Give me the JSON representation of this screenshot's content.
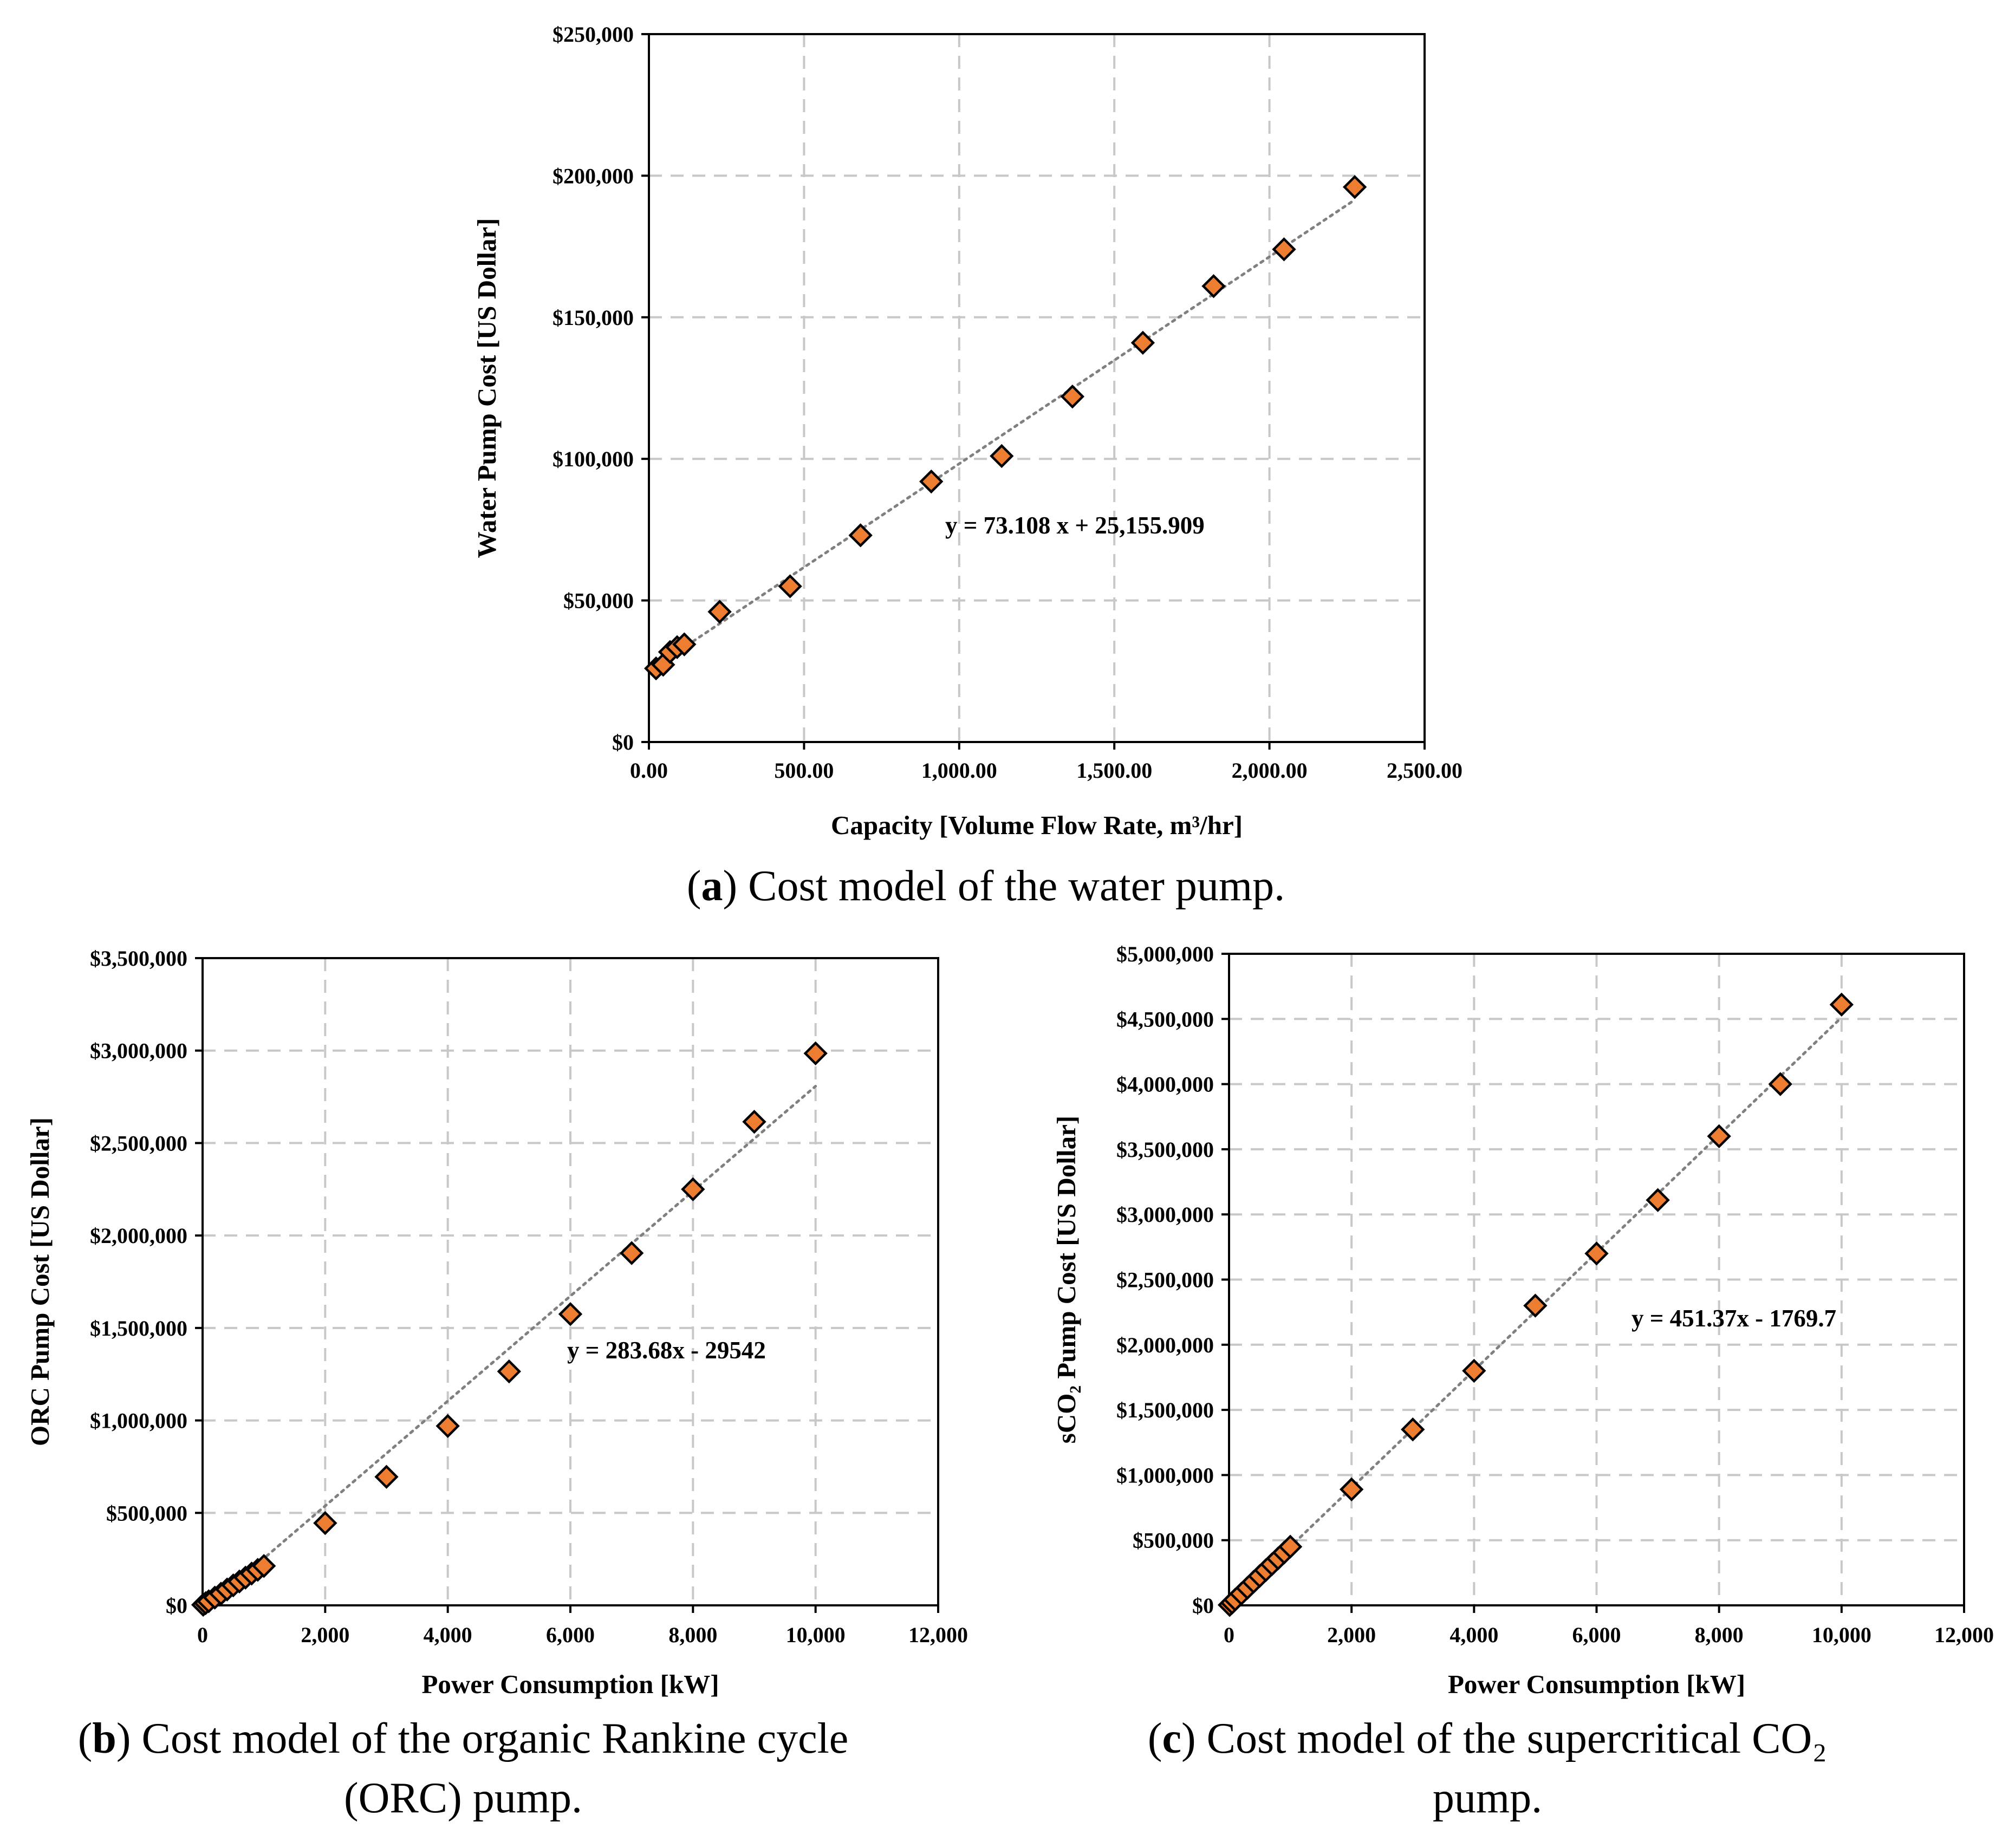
{
  "colors": {
    "marker_fill": "#ED7D31",
    "marker_edge": "#000000",
    "trend": "#808080",
    "grid": "#C8C8C8"
  },
  "chart_data": [
    {
      "id": "a",
      "type": "scatter",
      "marker": "diamond",
      "ylabel": "Water Pump Cost [US Dollar]",
      "xlabel": "Capacity [Volume Flow Rate, m³/hr]",
      "xlim": [
        0,
        2500
      ],
      "ylim": [
        0,
        250000
      ],
      "xticks": [
        0,
        500,
        1000,
        1500,
        2000,
        2500
      ],
      "xtick_labels": [
        "0.00",
        "500.00",
        "1,000.00",
        "1,500.00",
        "2,000.00",
        "2,500.00"
      ],
      "yticks": [
        0,
        50000,
        100000,
        150000,
        200000,
        250000
      ],
      "ytick_labels": [
        "$0",
        "$50,000",
        "$100,000",
        "$150,000",
        "$200,000",
        "$250,000"
      ],
      "grid": true,
      "equation": "y = 73.108 x + 25,155.909",
      "trendline": {
        "slope": 73.108,
        "intercept": 25155.909,
        "x_range": [
          0,
          2275
        ]
      },
      "x": [
        23,
        46,
        68,
        91,
        114,
        228,
        455,
        682,
        910,
        1137,
        1365,
        1592,
        1820,
        2047,
        2275
      ],
      "y": [
        26000,
        27300,
        31800,
        33500,
        34500,
        46000,
        55000,
        73000,
        92000,
        101000,
        122000,
        141000,
        161000,
        174000,
        196000
      ],
      "caption": {
        "tag": "a",
        "text": " Cost model of the water pump."
      }
    },
    {
      "id": "b",
      "type": "scatter",
      "marker": "diamond",
      "ylabel": "ORC Pump Cost [US Dollar]",
      "xlabel": "Power Consumption [kW]",
      "xlim": [
        0,
        12000
      ],
      "ylim": [
        0,
        3500000
      ],
      "xticks": [
        0,
        2000,
        4000,
        6000,
        8000,
        10000,
        12000
      ],
      "xtick_labels": [
        "0",
        "2,000",
        "4,000",
        "6,000",
        "8,000",
        "10,000",
        "12,000"
      ],
      "yticks": [
        0,
        500000,
        1000000,
        1500000,
        2000000,
        2500000,
        3000000,
        3500000
      ],
      "ytick_labels": [
        "$0",
        "$500,000",
        "$1,000,000",
        "$1,500,000",
        "$2,000,000",
        "$2,500,000",
        "$3,000,000",
        "$3,500,000"
      ],
      "grid": true,
      "equation": "y = 283.68x - 29542",
      "trendline": {
        "slope": 283.68,
        "intercept": -29542,
        "x_range": [
          104,
          10000
        ]
      },
      "x": [
        10,
        50,
        100,
        200,
        300,
        400,
        500,
        600,
        700,
        800,
        900,
        1000,
        2000,
        3000,
        4000,
        5000,
        6000,
        7000,
        8000,
        9000,
        10000
      ],
      "y": [
        3000,
        12000,
        22000,
        42000,
        63000,
        86000,
        108000,
        129000,
        150000,
        172000,
        192000,
        213000,
        445000,
        695000,
        970000,
        1265000,
        1575000,
        1905000,
        2250000,
        2615000,
        2985000
      ],
      "caption": {
        "tag": "b",
        "text": " Cost model of the organic Rankine cycle",
        "line2": "(ORC) pump."
      }
    },
    {
      "id": "c",
      "type": "scatter",
      "marker": "diamond",
      "ylabel": "sCO₂ Pump Cost [US Dollar]",
      "xlabel": "Power Consumption [kW]",
      "xlim": [
        0,
        12000
      ],
      "ylim": [
        0,
        5000000
      ],
      "xticks": [
        0,
        2000,
        4000,
        6000,
        8000,
        10000,
        12000
      ],
      "xtick_labels": [
        "0",
        "2,000",
        "4,000",
        "6,000",
        "8,000",
        "10,000",
        "12,000"
      ],
      "yticks": [
        0,
        500000,
        1000000,
        1500000,
        2000000,
        2500000,
        3000000,
        3500000,
        4000000,
        4500000,
        5000000
      ],
      "ytick_labels": [
        "$0",
        "$500,000",
        "$1,000,000",
        "$1,500,000",
        "$2,000,000",
        "$2,500,000",
        "$3,000,000",
        "$3,500,000",
        "$4,000,000",
        "$4,500,000",
        "$5,000,000"
      ],
      "grid": true,
      "equation": "y = 451.37x - 1769.7",
      "trendline": {
        "slope": 451.37,
        "intercept": -1769.7,
        "x_range": [
          0,
          10000
        ]
      },
      "x": [
        10,
        50,
        100,
        200,
        300,
        400,
        500,
        600,
        700,
        800,
        900,
        1000,
        2000,
        3000,
        4000,
        5000,
        6000,
        7000,
        8000,
        9000,
        10000
      ],
      "y": [
        3000,
        20000,
        44000,
        89000,
        134000,
        180000,
        225000,
        270000,
        315000,
        360000,
        405000,
        450000,
        890000,
        1350000,
        1800000,
        2300000,
        2700000,
        3110000,
        3600000,
        4000000,
        4610000
      ],
      "caption": {
        "tag": "c",
        "text": " Cost model of the supercritical CO₂",
        "line2": "pump."
      }
    }
  ]
}
